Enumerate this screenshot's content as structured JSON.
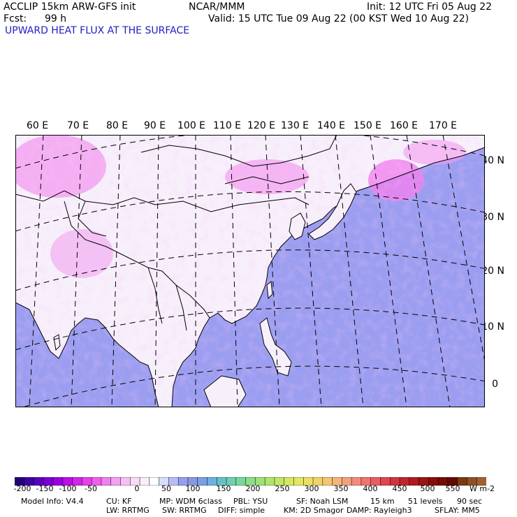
{
  "header": {
    "model": "ACCLIP 15km ARW-GFS init",
    "org": "NCAR/MMM",
    "init": "Init: 12 UTC Fri 05 Aug 22",
    "fcst_label": "Fcst:",
    "fcst_value": "99 h",
    "valid": "Valid: 15 UTC Tue 09 Aug 22 (00 KST Wed 10 Aug 22)",
    "field": "UPWARD HEAT FLUX AT THE SURFACE"
  },
  "map": {
    "lon_labels": [
      "60 E",
      "70 E",
      "80 E",
      "90 E",
      "100 E",
      "110 E",
      "120 E",
      "130 E",
      "140 E",
      "150 E",
      "160 E",
      "170 E"
    ],
    "lat_labels": [
      "40 N",
      "30 N",
      "20 N",
      "10 N",
      "0"
    ],
    "colors": {
      "ocean": "#9b9ef0",
      "land": "#f7f0fb",
      "pink": "#f39af0",
      "frame": "#000000"
    }
  },
  "colorbar": {
    "ticks": [
      "-200",
      "-150",
      "-100",
      "-50",
      "0",
      "50",
      "100",
      "150",
      "200",
      "250",
      "300",
      "350",
      "400",
      "450",
      "500",
      "550"
    ],
    "unit": "W m-2",
    "colors": [
      "#23007a",
      "#3f00a0",
      "#5a00c0",
      "#7a00d6",
      "#9a00e0",
      "#bb10e6",
      "#d424e8",
      "#e640e8",
      "#ee60ec",
      "#f080ef",
      "#f4a0f1",
      "#f7c0f5",
      "#f9dbf8",
      "#fbeefb",
      "#ffffff",
      "#d8dcfa",
      "#b7bcf6",
      "#979ef0",
      "#8898e0",
      "#78a0e8",
      "#6db0de",
      "#66c0c8",
      "#6fcfb0",
      "#7ad79a",
      "#8cdc88",
      "#9ee07a",
      "#b0e46e",
      "#c3e666",
      "#d6e862",
      "#e4e860",
      "#ecdf64",
      "#f0d46a",
      "#f2c672",
      "#f4b47a",
      "#f4a07c",
      "#f28c7a",
      "#ee7472",
      "#e85c64",
      "#de4650",
      "#d03440",
      "#c0242e",
      "#ae1a20",
      "#9a1412",
      "#860f08",
      "#740c04",
      "#640a02",
      "#7a3a10",
      "#8e5020",
      "#a06030"
    ]
  },
  "model_info": {
    "line1": [
      "Model Info: V4.4",
      "CU: KF",
      "MP: WDM 6class",
      "PBL: YSU",
      "SF: Noah LSM",
      "15 km",
      "51 levels",
      "90 sec"
    ],
    "line2": [
      "LW: RRTMG",
      "SW: RRTMG",
      "DIFF: simple",
      "KM: 2D Smagor",
      "DAMP: Rayleigh3",
      "SFLAY: MM5"
    ]
  }
}
